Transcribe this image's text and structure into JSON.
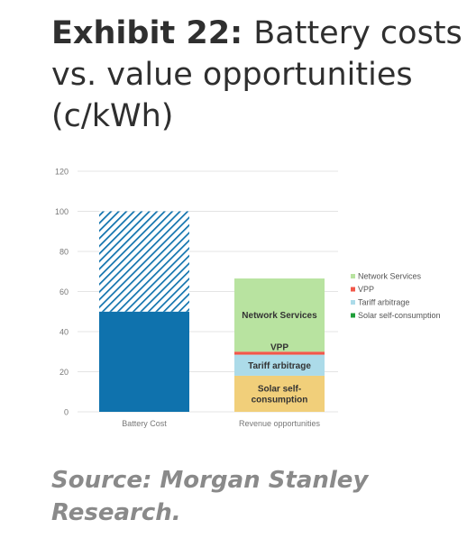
{
  "title": {
    "prefix": "Exhibit 22:",
    "text": "Battery costs vs. value opportunities (c/kWh)"
  },
  "source": "Source: Morgan Stanley Research.",
  "colors": {
    "battery_solid": "#0f72ad",
    "battery_hatch": "#0f72ad",
    "network_services": "#b8e3a0",
    "vpp": "#f2584a",
    "tariff_arbitrage": "#acdbe9",
    "solar_self_consumption": "#f1cf7a",
    "legend_solar": "#1f9e3a",
    "grid": "#e4e4e4",
    "axis_text": "#777777"
  },
  "chart_data": {
    "type": "bar",
    "categories": [
      "Battery Cost",
      "Revenue opportunities"
    ],
    "ylim": [
      0,
      120
    ],
    "yticks": [
      0,
      20,
      40,
      60,
      80,
      100,
      120
    ],
    "grid": true,
    "legend_position": "right",
    "battery": {
      "solid": 50,
      "hatched": 50
    },
    "series": [
      {
        "name": "Solar self-consumption",
        "label": "Solar self-consumption",
        "values": [
          0,
          18
        ],
        "color_key": "solar_self_consumption",
        "label_color": "#333333"
      },
      {
        "name": "Tariff arbitrage",
        "label": "Tariff arbitrage",
        "values": [
          0,
          10.5
        ],
        "color_key": "tariff_arbitrage",
        "label_color": "#333333"
      },
      {
        "name": "VPP",
        "label": "VPP",
        "values": [
          0,
          1.5
        ],
        "color_key": "vpp",
        "label_color": "#333333"
      },
      {
        "name": "Network Services",
        "label": "Network Services",
        "values": [
          0,
          36.5
        ],
        "color_key": "network_services",
        "label_color": "#333333"
      }
    ],
    "legend": [
      {
        "label": "Network Services",
        "color_key": "network_services"
      },
      {
        "label": "VPP",
        "color_key": "vpp"
      },
      {
        "label": "Tariff arbitrage",
        "color_key": "tariff_arbitrage"
      },
      {
        "label": "Solar self-consumption",
        "color_key": "legend_solar"
      }
    ]
  }
}
